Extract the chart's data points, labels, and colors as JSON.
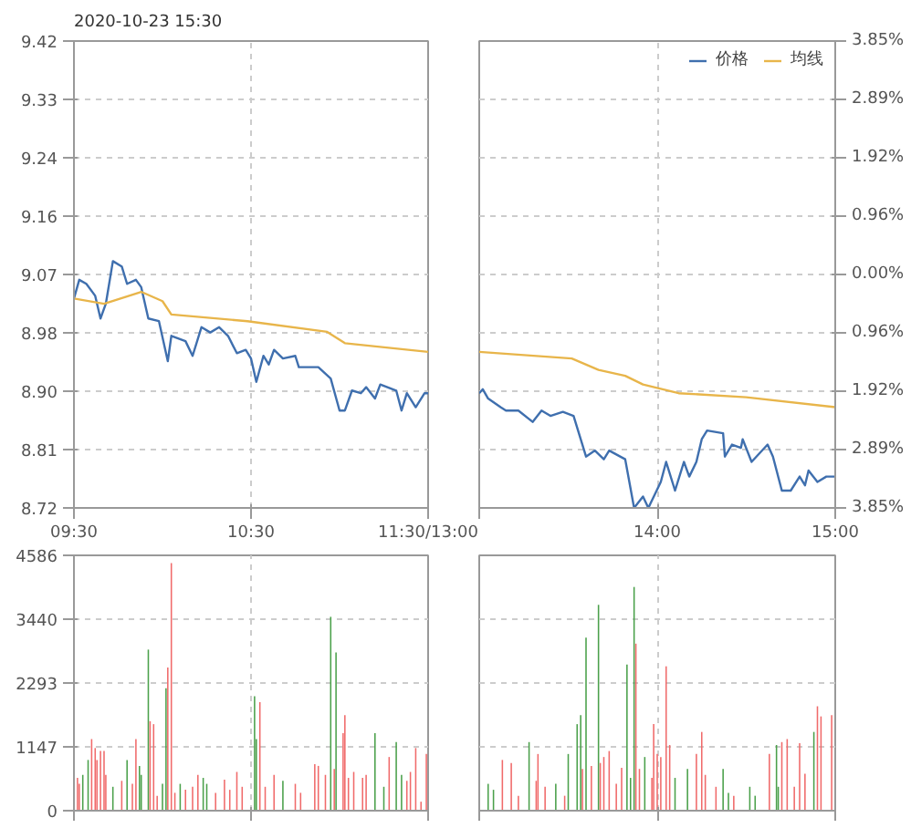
{
  "chart_data": [
    {
      "type": "line",
      "title": "2020-10-23 15:30",
      "grid": true,
      "xlim": [
        9.5,
        11.5
      ],
      "xticks": [
        {
          "value": 9.5,
          "label": "09:30"
        },
        {
          "value": 10.5,
          "label": "10:30"
        },
        {
          "value": 11.5,
          "label": "11:30/13:00"
        }
      ],
      "ylim": [
        8.72,
        9.42
      ],
      "yticks": [
        8.72,
        {
          "value": 8.8075,
          "label": "8.81"
        },
        {
          "value": 8.895,
          "label": "8.90"
        },
        {
          "value": 8.9825,
          "label": "8.98"
        },
        9.07,
        {
          "value": 9.1575,
          "label": "9.16"
        },
        {
          "value": 9.245,
          "label": "9.24"
        },
        {
          "value": 9.3325,
          "label": "9.33"
        },
        9.42
      ],
      "series": [
        {
          "color": "#3f6fae",
          "x": [
            9.5,
            9.53,
            9.57,
            9.62,
            9.65,
            9.68,
            9.72,
            9.77,
            9.8,
            9.85,
            9.88,
            9.92,
            9.98,
            10.03,
            10.05,
            10.13,
            10.17,
            10.22,
            10.27,
            10.32,
            10.37,
            10.42,
            10.47,
            10.5,
            10.53,
            10.57,
            10.6,
            10.63,
            10.68,
            10.75,
            10.77,
            10.88,
            10.95,
            11.0,
            11.03,
            11.07,
            11.12,
            11.15,
            11.2,
            11.23,
            11.32,
            11.35,
            11.38,
            11.43,
            11.48,
            11.5
          ],
          "values": [
            9.034,
            9.062,
            9.056,
            9.038,
            9.004,
            9.026,
            9.09,
            9.082,
            9.056,
            9.062,
            9.051,
            9.004,
            9.0,
            8.94,
            8.978,
            8.97,
            8.948,
            8.991,
            8.983,
            8.991,
            8.978,
            8.952,
            8.957,
            8.944,
            8.909,
            8.948,
            8.935,
            8.957,
            8.944,
            8.948,
            8.931,
            8.931,
            8.914,
            8.866,
            8.866,
            8.896,
            8.892,
            8.901,
            8.884,
            8.905,
            8.896,
            8.866,
            8.892,
            8.871,
            8.892,
            8.892
          ]
        },
        {
          "color": "#e8b54a",
          "x": [
            9.5,
            9.67,
            9.88,
            10.0,
            10.05,
            10.48,
            10.93,
            11.03,
            11.5
          ],
          "values": [
            9.034,
            9.026,
            9.044,
            9.03,
            9.01,
            9.0,
            8.984,
            8.967,
            8.954
          ]
        }
      ]
    },
    {
      "type": "line",
      "legend": "top right",
      "grid": true,
      "tick_labels": "x",
      "xlim": [
        13,
        15
      ],
      "xticks": [
        {
          "value": 13,
          "label": null
        },
        {
          "value": 14,
          "label": "14:00"
        },
        {
          "value": 15,
          "label": "15:00"
        }
      ],
      "ylim": [
        8.72,
        9.42
      ],
      "yticks": [
        {
          "value": 8.72,
          "label": null
        },
        {
          "value": 8.8075,
          "label": null
        },
        {
          "value": 8.895,
          "label": null
        },
        {
          "value": 8.9825,
          "label": null
        },
        {
          "value": 9.07,
          "label": null
        },
        {
          "value": 9.1575,
          "label": null
        },
        {
          "value": 9.245,
          "label": null
        },
        {
          "value": 9.3325,
          "label": null
        },
        {
          "value": 9.42,
          "label": null
        }
      ],
      "y2lim": [
        -3.85,
        3.85
      ],
      "y2ticks": [
        {
          "value": -3.85,
          "label": "3.85%"
        },
        {
          "value": -2.8875,
          "label": "2.89%"
        },
        {
          "value": -1.925,
          "label": "1.92%"
        },
        {
          "value": -0.9625,
          "label": "0.96%"
        },
        {
          "value": 0,
          "label": "0.00%"
        },
        {
          "value": 0.9625,
          "label": "0.96%"
        },
        {
          "value": 1.925,
          "label": "1.92%"
        },
        {
          "value": 2.8875,
          "label": "2.89%"
        },
        {
          "value": 3.85,
          "label": "3.85%"
        }
      ],
      "series": [
        {
          "name": "价格",
          "color": "#3f6fae",
          "x": [
            13.0,
            13.02,
            13.05,
            13.12,
            13.15,
            13.22,
            13.3,
            13.35,
            13.4,
            13.47,
            13.53,
            13.6,
            13.65,
            13.7,
            13.73,
            13.82,
            13.87,
            13.92,
            13.95,
            14.02,
            14.05,
            14.1,
            14.15,
            14.18,
            14.22,
            14.25,
            14.28,
            14.37,
            14.38,
            14.42,
            14.47,
            14.48,
            14.53,
            14.62,
            14.65,
            14.7,
            14.75,
            14.8,
            14.83,
            14.85,
            14.9,
            14.95,
            15.0
          ],
          "values": [
            8.892,
            8.898,
            8.884,
            8.871,
            8.866,
            8.866,
            8.849,
            8.866,
            8.858,
            8.864,
            8.858,
            8.797,
            8.806,
            8.793,
            8.806,
            8.793,
            8.72,
            8.737,
            8.72,
            8.759,
            8.789,
            8.746,
            8.789,
            8.767,
            8.789,
            8.823,
            8.836,
            8.832,
            8.797,
            8.815,
            8.81,
            8.823,
            8.789,
            8.815,
            8.797,
            8.746,
            8.746,
            8.767,
            8.754,
            8.776,
            8.759,
            8.767,
            8.767
          ]
        },
        {
          "name": "均线",
          "color": "#e8b54a",
          "x": [
            13.0,
            13.52,
            13.67,
            13.82,
            13.92,
            14.12,
            14.5,
            15.0
          ],
          "values": [
            8.954,
            8.944,
            8.927,
            8.918,
            8.905,
            8.892,
            8.886,
            8.871
          ]
        }
      ]
    },
    {
      "type": "bar",
      "tick_labels": "y",
      "grid": true,
      "xlim": [
        9.5,
        11.5
      ],
      "xticks": [
        {
          "value": 9.5,
          "label": null
        },
        {
          "value": 10.5,
          "label": null
        },
        {
          "value": 11.5,
          "label": null
        }
      ],
      "ylim": [
        0,
        4586
      ],
      "yticks": [
        0,
        1147,
        2293,
        3440,
        4586
      ],
      "x": [
        9.52,
        9.53,
        9.55,
        9.58,
        9.6,
        9.62,
        9.63,
        9.65,
        9.67,
        9.68,
        9.72,
        9.77,
        9.8,
        9.83,
        9.85,
        9.87,
        9.88,
        9.92,
        9.93,
        9.95,
        9.97,
        10.0,
        10.02,
        10.03,
        10.05,
        10.07,
        10.1,
        10.13,
        10.17,
        10.2,
        10.23,
        10.25,
        10.3,
        10.35,
        10.38,
        10.42,
        10.45,
        10.52,
        10.53,
        10.55,
        10.58,
        10.63,
        10.68,
        10.75,
        10.78,
        10.86,
        10.88,
        10.92,
        10.95,
        10.97,
        10.98,
        11.02,
        11.03,
        11.05,
        11.08,
        11.13,
        11.15,
        11.2,
        11.25,
        11.28,
        11.32,
        11.35,
        11.38,
        11.4,
        11.43,
        11.46,
        11.49
      ],
      "values": [
        589,
        482,
        643,
        911,
        1286,
        1125,
        911,
        1071,
        1071,
        643,
        429,
        536,
        911,
        482,
        1286,
        804,
        643,
        2893,
        1607,
        1554,
        268,
        482,
        2197,
        2572,
        4447,
        321,
        482,
        375,
        429,
        643,
        589,
        482,
        321,
        557,
        375,
        696,
        429,
        2057,
        1286,
        1950,
        429,
        643,
        536,
        482,
        321,
        836,
        804,
        643,
        3482,
        750,
        2840,
        1393,
        1714,
        589,
        696,
        589,
        643,
        1393,
        429,
        964,
        1232,
        643,
        536,
        696,
        1125,
        161,
        1018
      ],
      "colors": [
        "#f06a6a",
        "#f06a6a",
        "#4aa04a",
        "#4aa04a",
        "#f06a6a",
        "#f06a6a",
        "#f06a6a",
        "#f06a6a",
        "#f06a6a",
        "#f06a6a",
        "#4aa04a",
        "#f06a6a",
        "#4aa04a",
        "#f06a6a",
        "#f06a6a",
        "#4aa04a",
        "#4aa04a",
        "#4aa04a",
        "#f06a6a",
        "#f06a6a",
        "#f06a6a",
        "#4aa04a",
        "#4aa04a",
        "#f06a6a",
        "#f06a6a",
        "#f06a6a",
        "#4aa04a",
        "#f06a6a",
        "#f06a6a",
        "#f06a6a",
        "#4aa04a",
        "#4aa04a",
        "#f06a6a",
        "#f06a6a",
        "#f06a6a",
        "#f06a6a",
        "#f06a6a",
        "#4aa04a",
        "#4aa04a",
        "#f06a6a",
        "#f06a6a",
        "#f06a6a",
        "#4aa04a",
        "#f06a6a",
        "#f06a6a",
        "#f06a6a",
        "#f06a6a",
        "#f06a6a",
        "#4aa04a",
        "#f06a6a",
        "#4aa04a",
        "#f06a6a",
        "#f06a6a",
        "#f06a6a",
        "#f06a6a",
        "#f06a6a",
        "#f06a6a",
        "#4aa04a",
        "#4aa04a",
        "#f06a6a",
        "#4aa04a",
        "#4aa04a",
        "#f06a6a",
        "#f06a6a",
        "#f06a6a",
        "#f06a6a",
        "#f06a6a"
      ]
    },
    {
      "type": "bar",
      "tick_labels": false,
      "grid": true,
      "xlim": [
        13,
        15
      ],
      "xticks": [
        {
          "value": 13,
          "label": null
        },
        {
          "value": 14,
          "label": null
        },
        {
          "value": 15,
          "label": null
        }
      ],
      "ylim": [
        0,
        4586
      ],
      "yticks": [
        0,
        1147,
        2293,
        3440,
        4586
      ],
      "x": [
        13.05,
        13.08,
        13.13,
        13.18,
        13.22,
        13.28,
        13.32,
        13.33,
        13.37,
        13.43,
        13.48,
        13.5,
        13.55,
        13.57,
        13.58,
        13.6,
        13.63,
        13.67,
        13.68,
        13.7,
        13.73,
        13.77,
        13.8,
        13.83,
        13.85,
        13.87,
        13.88,
        13.9,
        13.93,
        13.97,
        13.98,
        14.0,
        14.02,
        14.05,
        14.07,
        14.1,
        14.17,
        14.22,
        14.25,
        14.27,
        14.33,
        14.37,
        14.4,
        14.43,
        14.52,
        14.55,
        14.63,
        14.67,
        14.68,
        14.7,
        14.73,
        14.77,
        14.8,
        14.83,
        14.88,
        14.9,
        14.92,
        14.98
      ],
      "values": [
        482,
        375,
        911,
        857,
        268,
        1232,
        536,
        1018,
        429,
        482,
        268,
        1018,
        1554,
        1714,
        750,
        3107,
        804,
        3697,
        857,
        964,
        1071,
        482,
        771,
        2625,
        589,
        4018,
        3000,
        750,
        964,
        589,
        1554,
        1018,
        964,
        2593,
        1179,
        589,
        750,
        1018,
        1414,
        643,
        429,
        750,
        321,
        268,
        429,
        268,
        1018,
        1179,
        429,
        1232,
        1286,
        429,
        1211,
        664,
        1414,
        1875,
        1693,
        1714
      ],
      "colors": [
        "#4aa04a",
        "#4aa04a",
        "#f06a6a",
        "#f06a6a",
        "#f06a6a",
        "#4aa04a",
        "#f06a6a",
        "#f06a6a",
        "#f06a6a",
        "#4aa04a",
        "#f06a6a",
        "#4aa04a",
        "#4aa04a",
        "#4aa04a",
        "#f06a6a",
        "#4aa04a",
        "#f06a6a",
        "#4aa04a",
        "#f06a6a",
        "#f06a6a",
        "#f06a6a",
        "#f06a6a",
        "#f06a6a",
        "#4aa04a",
        "#4aa04a",
        "#4aa04a",
        "#f06a6a",
        "#f06a6a",
        "#4aa04a",
        "#f06a6a",
        "#f06a6a",
        "#f06a6a",
        "#f06a6a",
        "#f06a6a",
        "#f06a6a",
        "#4aa04a",
        "#4aa04a",
        "#f06a6a",
        "#f06a6a",
        "#f06a6a",
        "#f06a6a",
        "#4aa04a",
        "#4aa04a",
        "#f06a6a",
        "#4aa04a",
        "#4aa04a",
        "#f06a6a",
        "#4aa04a",
        "#4aa04a",
        "#f06a6a",
        "#f06a6a",
        "#f06a6a",
        "#f06a6a",
        "#f06a6a",
        "#4aa04a",
        "#f06a6a",
        "#f06a6a",
        "#f06a6a"
      ]
    }
  ]
}
